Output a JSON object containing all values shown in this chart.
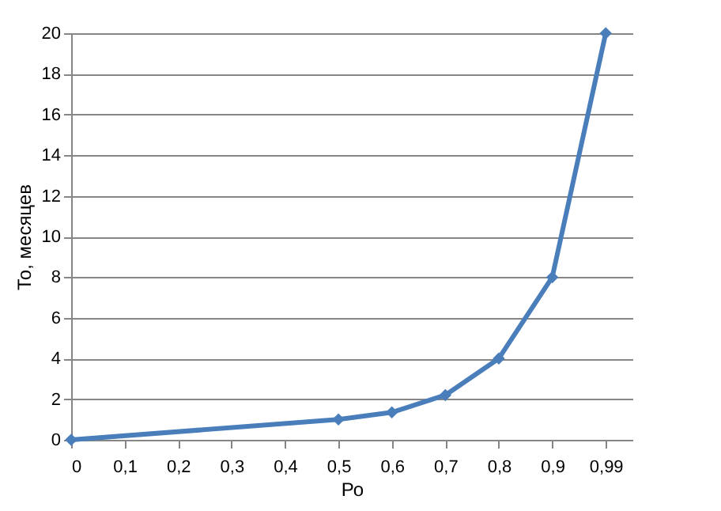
{
  "chart_data": {
    "type": "line",
    "xlabel": "Ро",
    "ylabel": "То, месяцев",
    "categories": [
      "0",
      "0,1",
      "0,2",
      "0,3",
      "0,4",
      "0,5",
      "0,6",
      "0,7",
      "0,8",
      "0,9",
      "0,99"
    ],
    "series": [
      {
        "color": "#4a7ebb",
        "values": [
          0,
          null,
          null,
          null,
          null,
          1,
          1.35,
          2.2,
          4,
          8,
          20
        ]
      }
    ],
    "ylim": [
      0,
      20
    ],
    "yticks": [
      0,
      2,
      4,
      6,
      8,
      10,
      12,
      14,
      16,
      18,
      20
    ],
    "grid": "y",
    "marker": "diamond",
    "legend": false
  }
}
